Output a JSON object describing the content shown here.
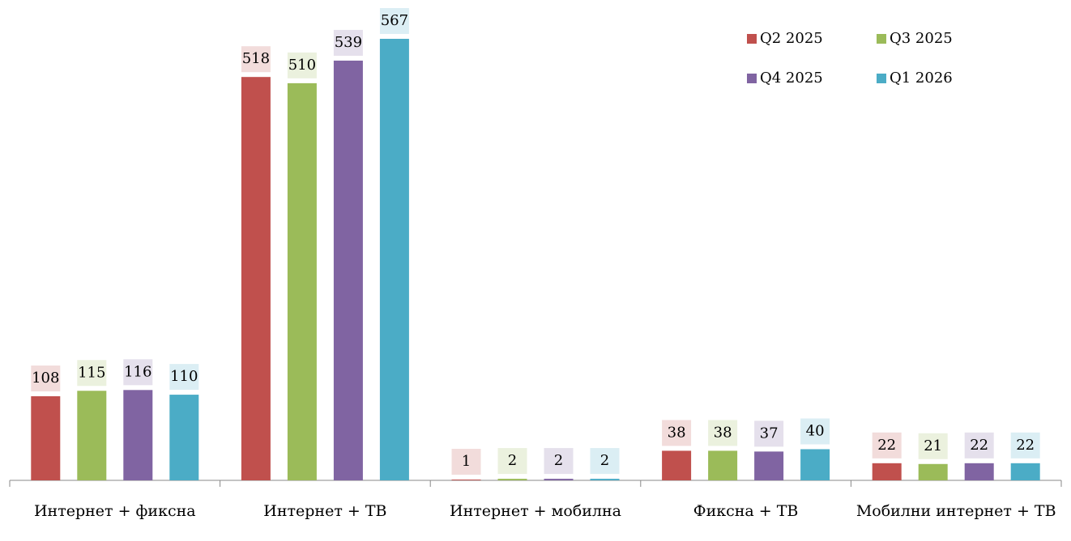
{
  "chart_data": {
    "type": "bar",
    "categories": [
      "Интернет + фиксна",
      "Интернет + ТВ",
      "Интернет + мобилна",
      "Фиксна + ТВ",
      "Мобилни интернет + ТВ"
    ],
    "series": [
      {
        "name": "Q2 2025",
        "color": "#c0504d",
        "label_background": "#f2dcdb",
        "values": [
          108,
          518,
          1,
          38,
          22
        ]
      },
      {
        "name": "Q3 2025",
        "color": "#9bbb59",
        "label_background": "#ebf1de",
        "values": [
          115,
          510,
          2,
          38,
          21
        ]
      },
      {
        "name": "Q4 2025",
        "color": "#8064a2",
        "label_background": "#e5e0ec",
        "values": [
          116,
          539,
          2,
          37,
          22
        ]
      },
      {
        "name": "Q1 2026",
        "color": "#4bacc6",
        "label_background": "#dbeef4",
        "values": [
          110,
          567,
          2,
          40,
          22
        ]
      }
    ],
    "legend": "top-right",
    "grid": false
  }
}
